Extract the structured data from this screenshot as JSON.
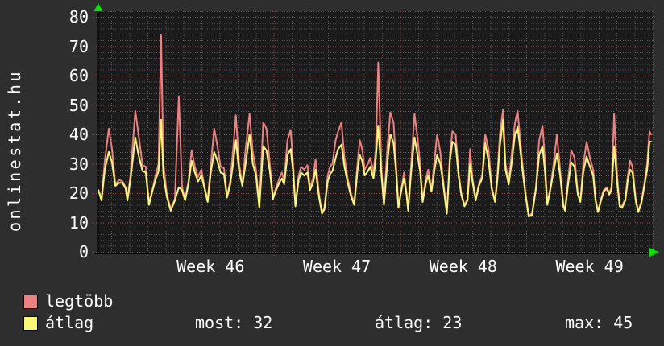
{
  "watermark": "onlinestat.hu",
  "legend": {
    "series": [
      {
        "label": "legtöbb",
        "color": "#f08080"
      },
      {
        "label": "átlag",
        "color": "#f9f973"
      }
    ],
    "stats": [
      {
        "text": "most: 32"
      },
      {
        "text": "átlag: 23"
      },
      {
        "text": "max: 45"
      }
    ]
  },
  "colors": {
    "background": "#2e2e2e",
    "plot_background": "#1b1b1b",
    "text": "#ffffff",
    "major_grid": "#a84848",
    "minor_grid": "#5a5a5a",
    "axis": "#000000",
    "arrow": "#00e600",
    "series1": "#f08080",
    "series2": "#f9f973"
  },
  "chart_data": {
    "type": "line",
    "title": "",
    "ylim": [
      0,
      80
    ],
    "y_ticks": [
      0,
      10,
      20,
      30,
      40,
      50,
      60,
      70,
      80
    ],
    "x_tick_labels": [
      "Week 46",
      "Week 47",
      "Week 48",
      "Week 49"
    ],
    "x_range_days": [
      0,
      30.72
    ],
    "week_start_days": [
      2.72,
      9.72,
      16.72,
      23.72
    ],
    "week_label_center_days": [
      6.22,
      13.22,
      20.22,
      27.22
    ],
    "grid": true,
    "legend_position": "bottom-left",
    "stats": {
      "most": 32,
      "atlag": 23,
      "max": 45
    },
    "t_days": [
      0,
      0.18,
      0.36,
      0.58,
      0.76,
      0.94,
      1.16,
      1.34,
      1.52,
      1.61,
      1.78,
      2.05,
      2.23,
      2.45,
      2.63,
      2.81,
      3.03,
      3.17,
      3.34,
      3.48,
      3.61,
      3.79,
      4.01,
      4.24,
      4.46,
      4.64,
      4.81,
      4.99,
      5.17,
      5.35,
      5.53,
      5.71,
      5.89,
      6.06,
      6.24,
      6.42,
      6.6,
      6.78,
      6.96,
      7.13,
      7.31,
      7.49,
      7.62,
      7.8,
      7.98,
      8.16,
      8.38,
      8.56,
      8.74,
      8.92,
      9.14,
      9.32,
      9.5,
      9.68,
      9.81,
      10.03,
      10.17,
      10.3,
      10.48,
      10.66,
      10.79,
      10.92,
      11.1,
      11.24,
      11.41,
      11.59,
      11.73,
      11.9,
      12.04,
      12.22,
      12.39,
      12.53,
      12.71,
      12.84,
      12.97,
      13.15,
      13.29,
      13.47,
      13.64,
      13.82,
      14.0,
      14.18,
      14.36,
      14.49,
      14.62,
      14.76,
      14.94,
      15.07,
      15.25,
      15.38,
      15.51,
      15.69,
      15.83,
      16.01,
      16.18,
      16.36,
      16.5,
      16.63,
      16.81,
      16.94,
      17.08,
      17.17,
      17.34,
      17.52,
      17.7,
      17.83,
      17.97,
      18.15,
      18.28,
      18.46,
      18.64,
      18.77,
      18.95,
      19.08,
      19.31,
      19.48,
      19.62,
      19.8,
      19.97,
      20.11,
      20.29,
      20.46,
      20.6,
      20.73,
      20.91,
      21.09,
      21.27,
      21.44,
      21.62,
      21.8,
      21.98,
      22.11,
      22.25,
      22.43,
      22.56,
      22.74,
      22.92,
      23.09,
      23.23,
      23.32,
      23.5,
      23.67,
      23.85,
      24.03,
      24.25,
      24.43,
      24.61,
      24.74,
      24.88,
      25.06,
      25.23,
      25.41,
      25.59,
      25.77,
      25.86,
      26.04,
      26.21,
      26.39,
      26.57,
      26.71,
      26.88,
      27.06,
      27.24,
      27.42,
      27.55,
      27.69,
      27.86,
      28.0,
      28.18,
      28.31,
      28.44,
      28.58,
      28.76,
      28.89,
      29.02,
      29.2,
      29.34,
      29.47,
      29.6,
      29.78,
      29.92,
      30.09,
      30.23,
      30.41,
      30.54,
      30.63
    ],
    "series": [
      {
        "name": "legtöbb",
        "color": "#f08080",
        "values": [
          21,
          18,
          31,
          42,
          35,
          23,
          24.5,
          24,
          22,
          18,
          26,
          48,
          40,
          29.5,
          29,
          16.5,
          22,
          26,
          30,
          74,
          30,
          20,
          14.5,
          18,
          53,
          22,
          18,
          24,
          34.5,
          29,
          25.5,
          28,
          22,
          17.5,
          30,
          42,
          36,
          29,
          28.5,
          19,
          24,
          36,
          46.5,
          30,
          23,
          35,
          47,
          34,
          28,
          15.5,
          44,
          42,
          30,
          18.5,
          21,
          25,
          27,
          24,
          38,
          41.5,
          30,
          16,
          26,
          29,
          28,
          29.5,
          22,
          25,
          31.5,
          20,
          13.5,
          15,
          26,
          29,
          30,
          38,
          41,
          44,
          32,
          25,
          20,
          16.5,
          30,
          38,
          35,
          28,
          30,
          32,
          27,
          35,
          64.5,
          28,
          16.5,
          35,
          47.5,
          44,
          30,
          15.5,
          22,
          27,
          20,
          14.5,
          30,
          47,
          38,
          30,
          17.5,
          25,
          28,
          21,
          32,
          40,
          34,
          26,
          13.5,
          33,
          41,
          40,
          27,
          20,
          16,
          18,
          35,
          25,
          18,
          23,
          26,
          40,
          35,
          22,
          17.5,
          26,
          40,
          48.5,
          30,
          24,
          34,
          44,
          48,
          42,
          30,
          20,
          12.5,
          13,
          22,
          38,
          43,
          32,
          16.5,
          22,
          30,
          40,
          28,
          16,
          14.5,
          25,
          34.5,
          32,
          20,
          17.5,
          30,
          37.5,
          32,
          28,
          18,
          14,
          18,
          21,
          22,
          20,
          22,
          47,
          25,
          16,
          15.5,
          18,
          26,
          31,
          29,
          18,
          14,
          17,
          22,
          30,
          41,
          40
        ]
      },
      {
        "name": "átlag",
        "color": "#f9f973",
        "values": [
          21,
          17.5,
          28,
          34,
          30.5,
          22.5,
          23.5,
          23.5,
          21.5,
          17.5,
          24.5,
          39,
          33,
          27.5,
          27,
          16,
          21.5,
          24.5,
          27.5,
          45,
          26,
          19,
          14,
          17.5,
          22,
          21,
          17.5,
          23,
          31,
          27,
          24,
          26,
          21.5,
          17,
          27.5,
          34,
          31,
          27,
          26.5,
          18.5,
          23,
          31,
          38,
          27.5,
          22.5,
          30,
          40,
          30,
          26,
          15,
          36,
          34.5,
          27.5,
          18,
          20.5,
          23.5,
          25,
          23,
          33,
          35,
          27.5,
          15.5,
          24.5,
          27,
          26,
          27,
          21,
          23.5,
          28,
          19,
          13,
          14.5,
          24,
          26.5,
          27.5,
          32,
          35,
          36.5,
          29,
          23.5,
          19,
          16,
          27.5,
          33,
          31,
          26,
          27.5,
          29,
          25,
          32,
          43,
          26,
          16,
          30,
          40,
          37,
          27.5,
          15,
          21.5,
          25,
          19.5,
          14,
          27.5,
          39,
          32.5,
          27.5,
          17,
          23.5,
          26,
          20.5,
          28.5,
          33,
          30,
          24.5,
          13,
          31,
          37.5,
          36.5,
          25.5,
          19.5,
          15.5,
          17.5,
          30,
          24,
          17.5,
          22.5,
          25,
          37,
          31,
          21.5,
          17,
          24.5,
          36,
          45,
          28,
          23,
          31,
          40,
          42.5,
          38,
          28,
          19.5,
          12,
          12.5,
          21.5,
          33,
          36,
          28,
          16,
          21.5,
          27.5,
          33.5,
          26,
          15.5,
          14,
          23.5,
          30.5,
          29,
          19.5,
          17,
          27.5,
          32.5,
          29,
          26,
          17.5,
          13.5,
          17.5,
          20.5,
          21.5,
          19.5,
          21,
          36,
          23,
          15.5,
          15,
          17.5,
          24.5,
          28,
          27,
          17.5,
          13.5,
          16.5,
          21.5,
          28,
          37.5,
          37.5
        ]
      }
    ]
  }
}
